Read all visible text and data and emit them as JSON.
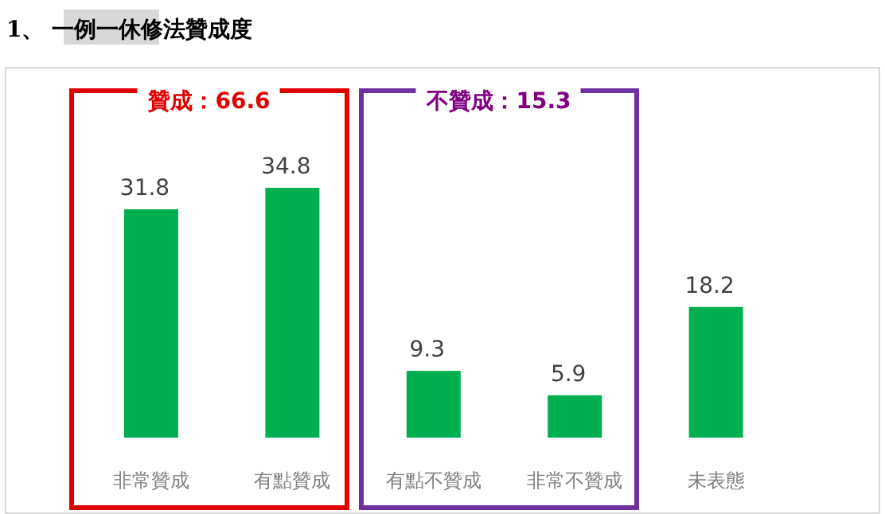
{
  "chart_data": {
    "type": "bar",
    "title": "1、 一例一休修法贊成度",
    "categories": [
      "非常贊成",
      "有點贊成",
      "有點不贊成",
      "非常不贊成",
      "未表態"
    ],
    "values": [
      31.8,
      34.8,
      9.3,
      5.9,
      18.2
    ],
    "color": "#00b050",
    "data_labels": true,
    "annotations": [
      "贊成：66.6",
      "不贊成：15.3"
    ]
  }
}
